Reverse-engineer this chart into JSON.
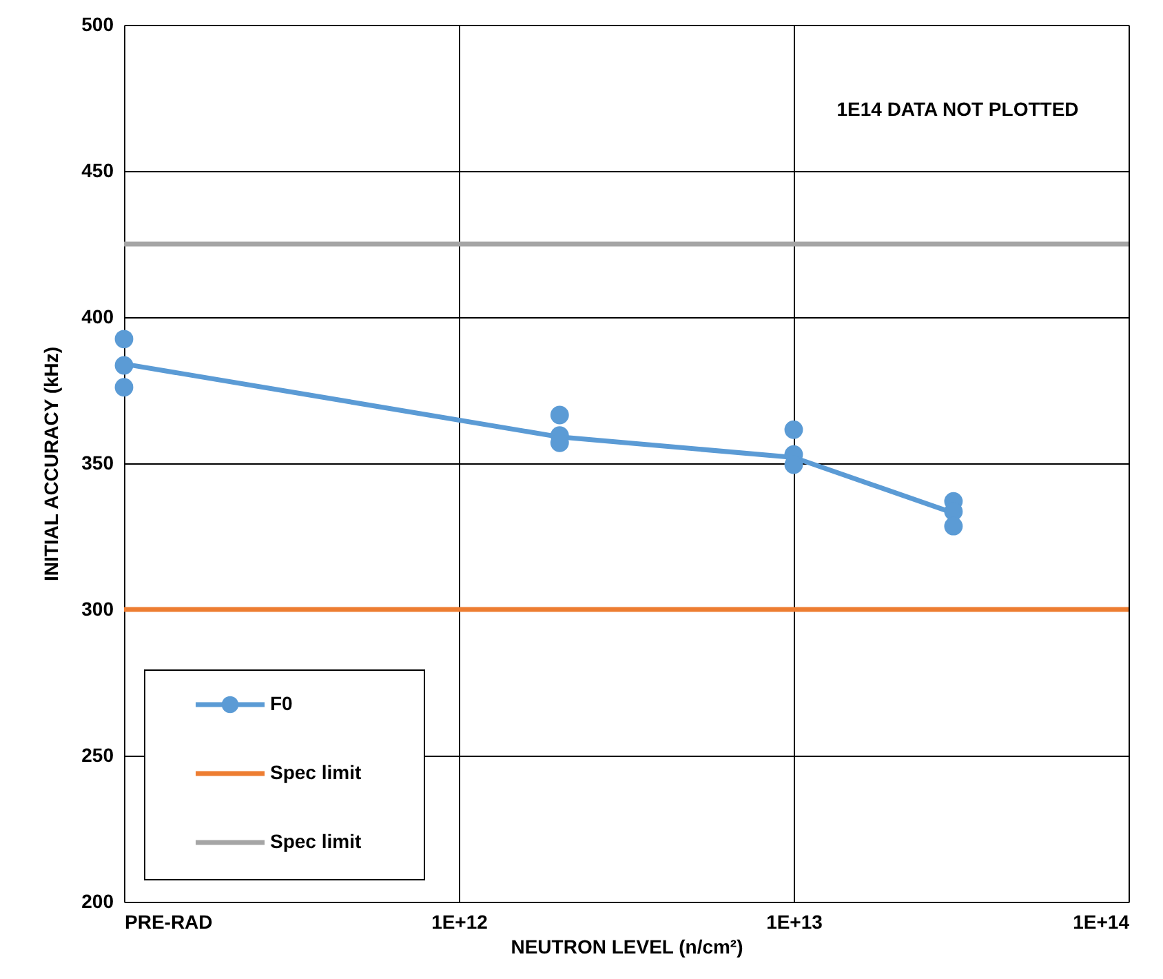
{
  "chart_data": {
    "type": "line",
    "xlabel": "NEUTRON LEVEL (n/cm²)",
    "ylabel": "INITIAL ACCURACY (kHz)",
    "annotations": [
      "1E14 DATA NOT PLOTTED"
    ],
    "log": "x",
    "xlim": [
      100000000000.0,
      100000000000000.0
    ],
    "xticks": [
      {
        "value": 100000000000.0,
        "label": "PRE-RAD"
      },
      {
        "value": 1000000000000.0,
        "label": "1E+12"
      },
      {
        "value": 10000000000000.0,
        "label": "1E+13"
      },
      {
        "value": 100000000000000.0,
        "label": "1E+14"
      }
    ],
    "ylim": [
      200,
      500
    ],
    "yticks": [
      200,
      250,
      300,
      350,
      400,
      450,
      500
    ],
    "grid": true,
    "legend": "bottom left",
    "series": [
      {
        "name": "F0",
        "color": "#5b9bd5",
        "marker": "none",
        "x": [
          100000000000.0,
          2000000000000.0,
          10000000000000.0,
          30000000000000.0
        ],
        "values": [
          384,
          359,
          352,
          333
        ]
      },
      {
        "type": "scatter",
        "color": "#5b9bd5",
        "marker": "circle",
        "x": [
          100000000000.0,
          100000000000.0,
          100000000000.0,
          2000000000000.0,
          2000000000000.0,
          2000000000000.0,
          10000000000000.0,
          10000000000000.0,
          10000000000000.0,
          30000000000000.0,
          30000000000000.0,
          30000000000000.0
        ],
        "values": [
          392.5,
          383.5,
          376,
          366.5,
          359.5,
          357,
          361.5,
          353,
          349.5,
          337,
          333.5,
          328.5
        ]
      }
    ],
    "ref_lines": [
      {
        "axis": "y",
        "value": 300,
        "label": "Spec limit",
        "color": "#ed7d31"
      },
      {
        "axis": "y",
        "value": 425,
        "label": "Spec limit",
        "color": "#a5a5a5"
      }
    ]
  }
}
